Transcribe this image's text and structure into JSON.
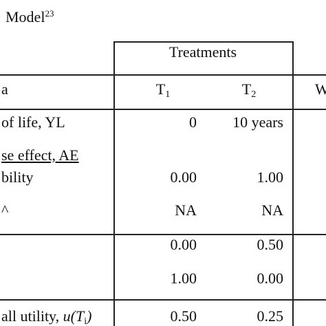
{
  "title": {
    "text": "Model",
    "superscript": "23"
  },
  "table": {
    "group_header": "Treatments",
    "columns": [
      {
        "text": "a"
      },
      {
        "text": "T",
        "sub": "1"
      },
      {
        "text": "T",
        "sub": "2"
      },
      {
        "text": "W"
      }
    ],
    "rows": [
      {
        "label": "of life, YL",
        "cells": [
          "0",
          "10 years"
        ]
      },
      {
        "label": "se effect, AE"
      },
      {
        "label": "bility",
        "cells": [
          "0.00",
          "1.00"
        ]
      },
      {
        "label": "^",
        "cells": [
          "NA",
          "NA"
        ]
      },
      {
        "cells": [
          "0.00",
          "0.50"
        ]
      },
      {
        "cells": [
          "1.00",
          "0.00"
        ]
      }
    ],
    "total": {
      "label": "all utility,",
      "formula": {
        "text": "u(T",
        "sub": "i",
        "close": ")"
      },
      "cells": [
        "0.50",
        "0.25"
      ]
    }
  }
}
